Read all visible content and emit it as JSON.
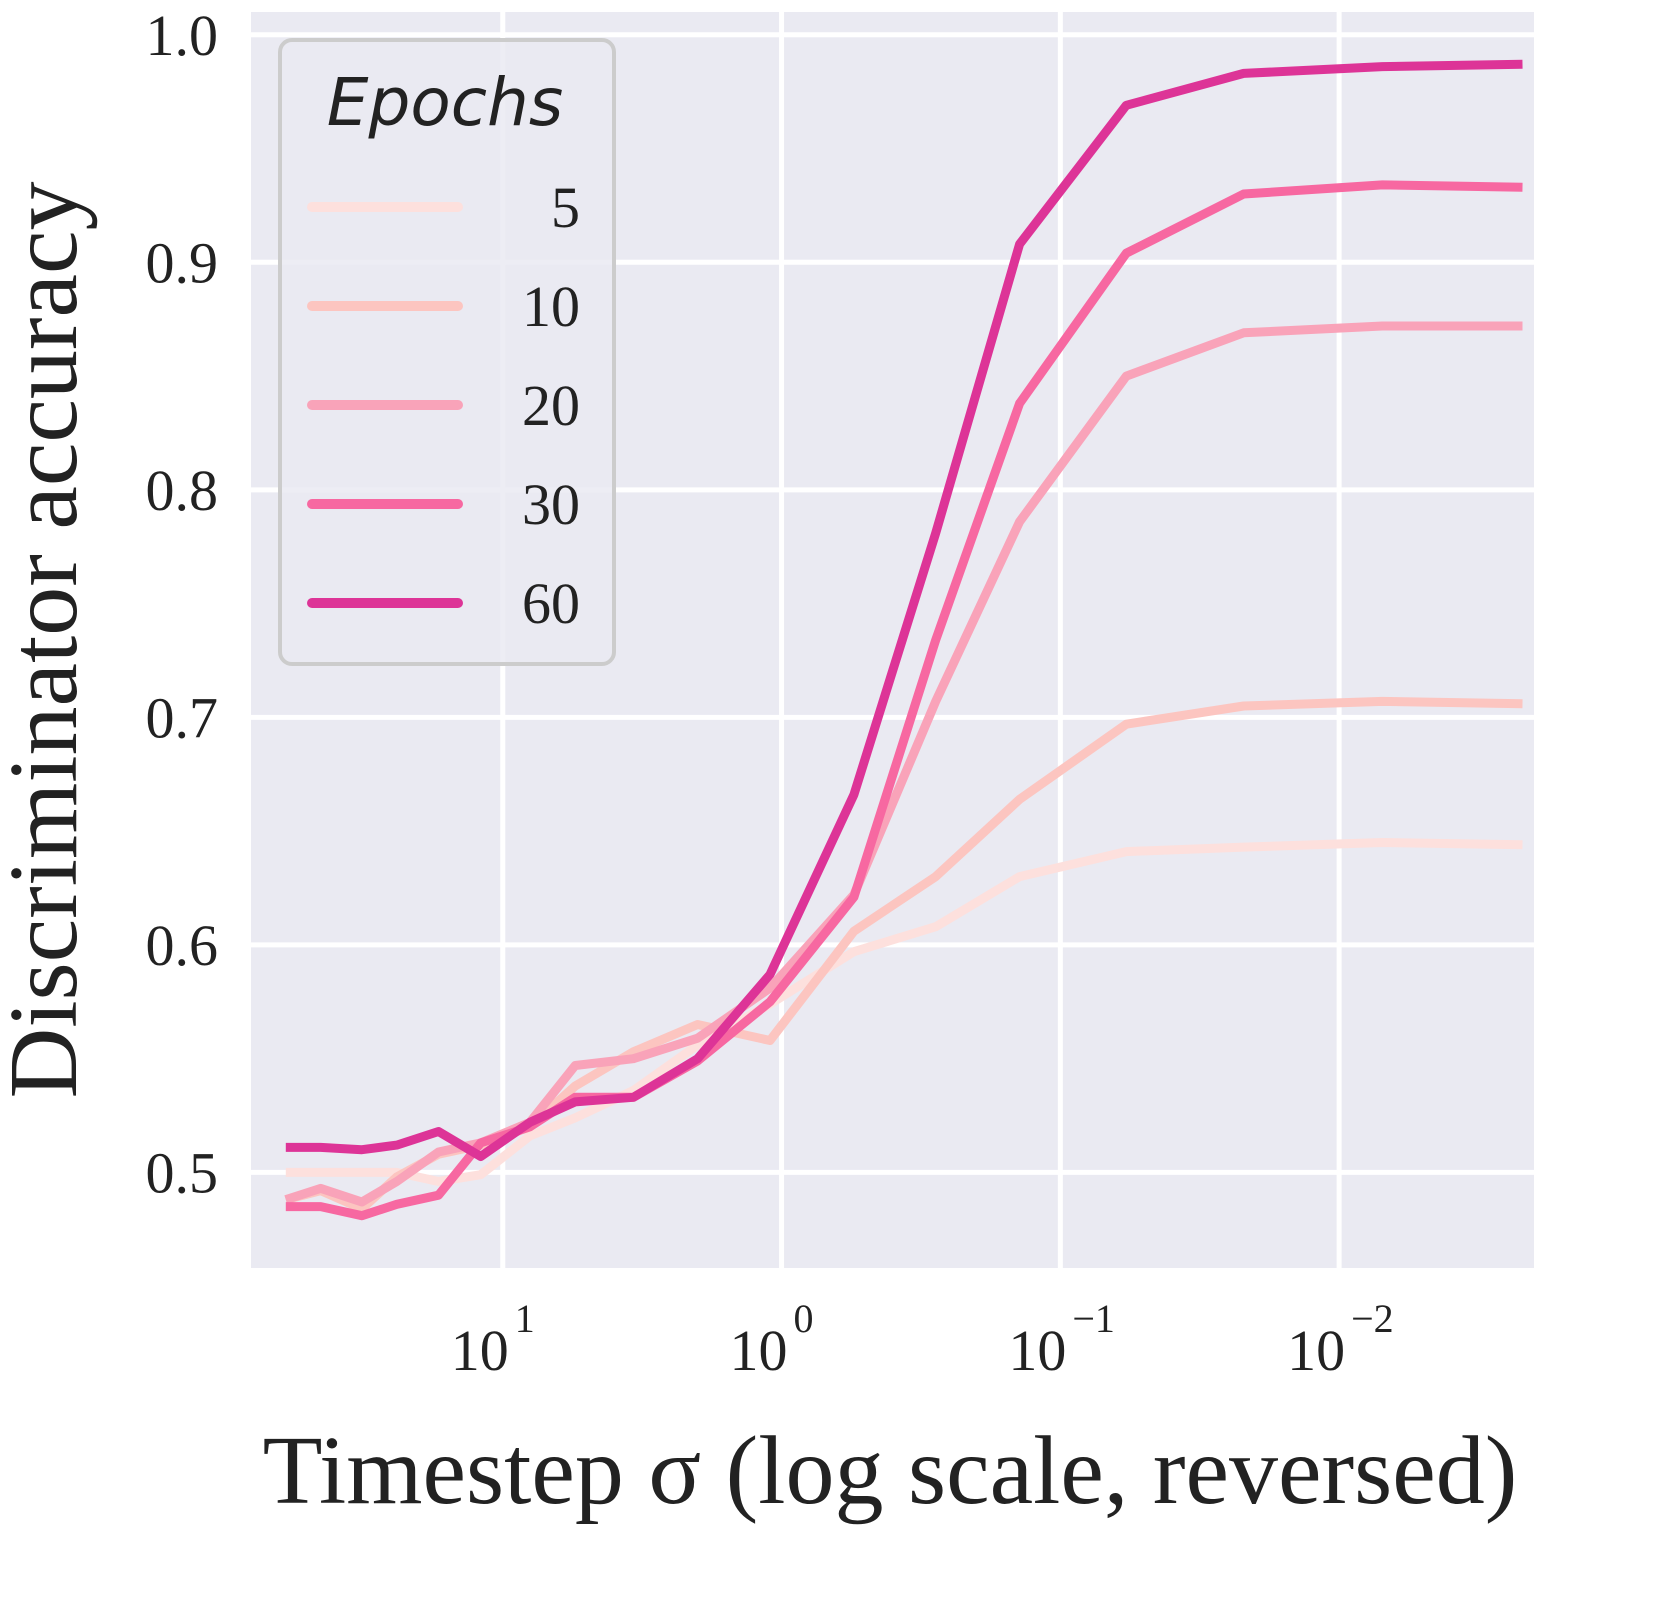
{
  "chart_data": {
    "type": "line",
    "xlabel": "Timestep σ (log scale, reversed)",
    "ylabel": "Discriminator accuracy",
    "xscale": "log",
    "x_reversed": true,
    "xlim": [
      80,
      0.002
    ],
    "ylim": [
      0.458,
      1.01
    ],
    "grid": true,
    "legend_title": "Epochs",
    "legend_position": "top-left",
    "yticks": [
      0.5,
      0.6,
      0.7,
      0.8,
      0.9,
      1.0
    ],
    "ytick_labels": [
      "0.5",
      "0.6",
      "0.7",
      "0.8",
      "0.9",
      "1.0"
    ],
    "xticks": [
      10,
      1,
      0.1,
      0.01
    ],
    "xtick_labels": [
      {
        "base": "10",
        "exp": "1"
      },
      {
        "base": "10",
        "exp": "0"
      },
      {
        "base": "10",
        "exp": "−1"
      },
      {
        "base": "10",
        "exp": "−2"
      }
    ],
    "x": [
      60,
      45,
      32,
      24,
      17,
      12,
      8,
      5.5,
      3.4,
      2.0,
      1.1,
      0.55,
      0.28,
      0.14,
      0.058,
      0.022,
      0.007,
      0.0022
    ],
    "series": [
      {
        "name": "5",
        "color": "#fde0dd",
        "values": [
          0.5,
          0.5,
          0.5,
          0.5,
          0.496,
          0.499,
          0.516,
          0.524,
          0.536,
          0.556,
          0.574,
          0.597,
          0.608,
          0.63,
          0.641,
          0.643,
          0.645,
          0.644
        ]
      },
      {
        "name": "10",
        "color": "#fcc5c0",
        "values": [
          0.488,
          0.492,
          0.484,
          0.498,
          0.508,
          0.512,
          0.52,
          0.538,
          0.553,
          0.565,
          0.558,
          0.606,
          0.63,
          0.664,
          0.697,
          0.705,
          0.707,
          0.706
        ]
      },
      {
        "name": "20",
        "color": "#f9a3b9",
        "values": [
          0.488,
          0.493,
          0.487,
          0.496,
          0.509,
          0.513,
          0.522,
          0.547,
          0.55,
          0.559,
          0.581,
          0.622,
          0.707,
          0.786,
          0.85,
          0.869,
          0.872,
          0.872
        ]
      },
      {
        "name": "30",
        "color": "#f768a1",
        "values": [
          0.485,
          0.485,
          0.481,
          0.486,
          0.49,
          0.513,
          0.52,
          0.533,
          0.533,
          0.549,
          0.575,
          0.621,
          0.734,
          0.838,
          0.904,
          0.93,
          0.934,
          0.933
        ]
      },
      {
        "name": "60",
        "color": "#dd3497",
        "values": [
          0.511,
          0.511,
          0.51,
          0.512,
          0.518,
          0.507,
          0.522,
          0.531,
          0.533,
          0.55,
          0.587,
          0.666,
          0.781,
          0.908,
          0.969,
          0.983,
          0.986,
          0.987
        ]
      }
    ]
  }
}
